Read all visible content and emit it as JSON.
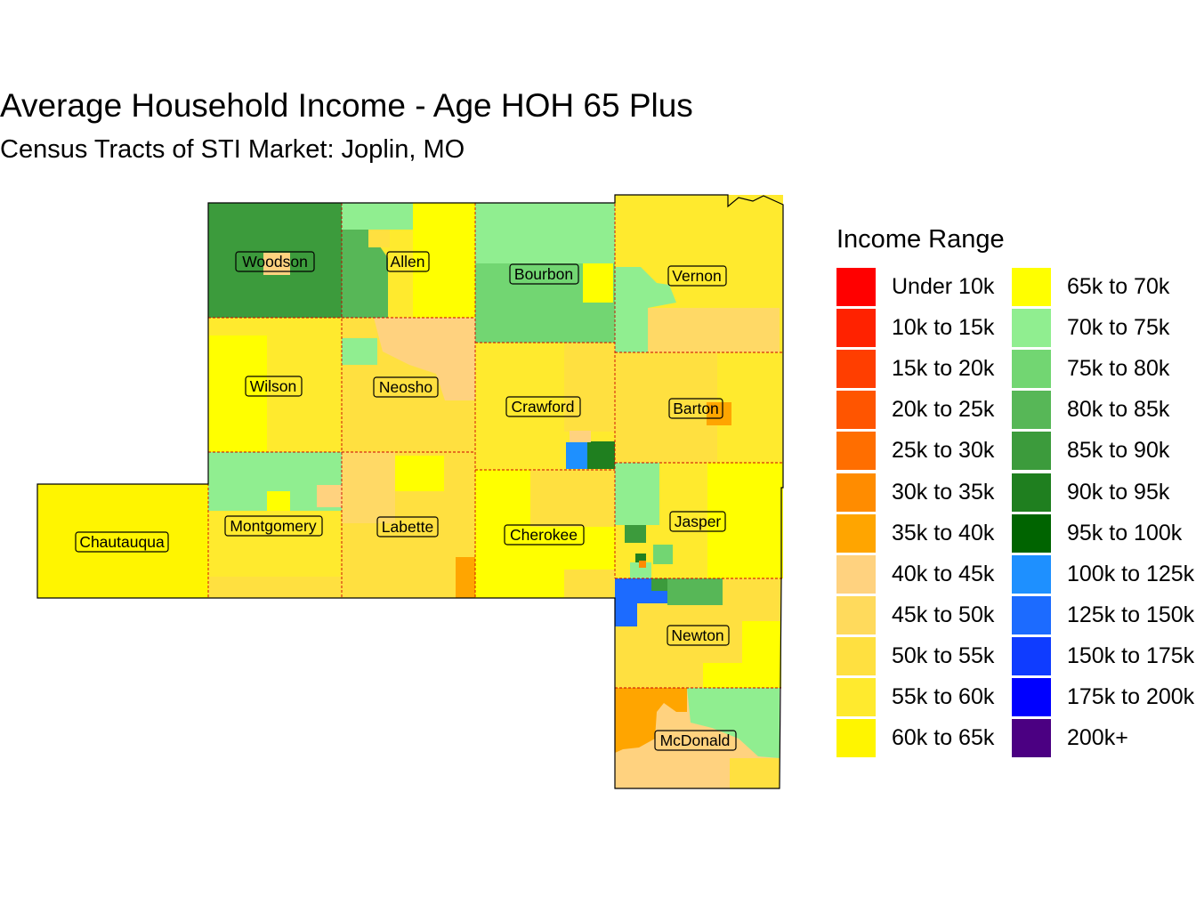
{
  "title": "Average Household Income - Age HOH 65 Plus",
  "subtitle": "Census Tracts of STI Market: Joplin, MO",
  "legend": {
    "title": "Income Range",
    "items": [
      {
        "label": "Under 10k",
        "color": "#FF0000"
      },
      {
        "label": "10k to 15k",
        "color": "#FF2200"
      },
      {
        "label": "15k to 20k",
        "color": "#FF3E00"
      },
      {
        "label": "20k to 25k",
        "color": "#FF5500"
      },
      {
        "label": "25k to 30k",
        "color": "#FF6E00"
      },
      {
        "label": "30k to 35k",
        "color": "#FF8C00"
      },
      {
        "label": "35k to 40k",
        "color": "#FFA500"
      },
      {
        "label": "40k to 45k",
        "color": "#FFD27F"
      },
      {
        "label": "45k to 50k",
        "color": "#FFDA5C"
      },
      {
        "label": "50k to 55k",
        "color": "#FFE040"
      },
      {
        "label": "55k to 60k",
        "color": "#FFEA2E"
      },
      {
        "label": "60k to 65k",
        "color": "#FFF500"
      },
      {
        "label": "65k to 70k",
        "color": "#FFFF00"
      },
      {
        "label": "70k to 75k",
        "color": "#90EE90"
      },
      {
        "label": "75k to 80k",
        "color": "#72D672"
      },
      {
        "label": "80k to 85k",
        "color": "#57B757"
      },
      {
        "label": "85k to 90k",
        "color": "#3C9B3C"
      },
      {
        "label": "90k to 95k",
        "color": "#1F7F1F"
      },
      {
        "label": "95k to 100k",
        "color": "#006400"
      },
      {
        "label": "100k to 125k",
        "color": "#1E90FF"
      },
      {
        "label": "125k to 150k",
        "color": "#1C6BFF"
      },
      {
        "label": "150k to 175k",
        "color": "#0F3CFF"
      },
      {
        "label": "175k to 200k",
        "color": "#0000FF"
      },
      {
        "label": "200k+",
        "color": "#4B0082"
      }
    ]
  },
  "counties": [
    {
      "name": "Woodson",
      "fill": "#3C9B3C"
    },
    {
      "name": "Allen",
      "fill": "#FFEA2E"
    },
    {
      "name": "Bourbon",
      "fill": "#72D672"
    },
    {
      "name": "Vernon",
      "fill": "#FFEA2E"
    },
    {
      "name": "Wilson",
      "fill": "#FFFF00"
    },
    {
      "name": "Neosho",
      "fill": "#FFE040"
    },
    {
      "name": "Crawford",
      "fill": "#FFEA2E"
    },
    {
      "name": "Barton",
      "fill": "#FFE040"
    },
    {
      "name": "Chautauqua",
      "fill": "#FFF500"
    },
    {
      "name": "Montgomery",
      "fill": "#FFEA2E"
    },
    {
      "name": "Labette",
      "fill": "#FFE040"
    },
    {
      "name": "Cherokee",
      "fill": "#FFFF00"
    },
    {
      "name": "Jasper",
      "fill": "#FFEA2E"
    },
    {
      "name": "Newton",
      "fill": "#FFE040"
    },
    {
      "name": "McDonald",
      "fill": "#FFD27F"
    }
  ]
}
